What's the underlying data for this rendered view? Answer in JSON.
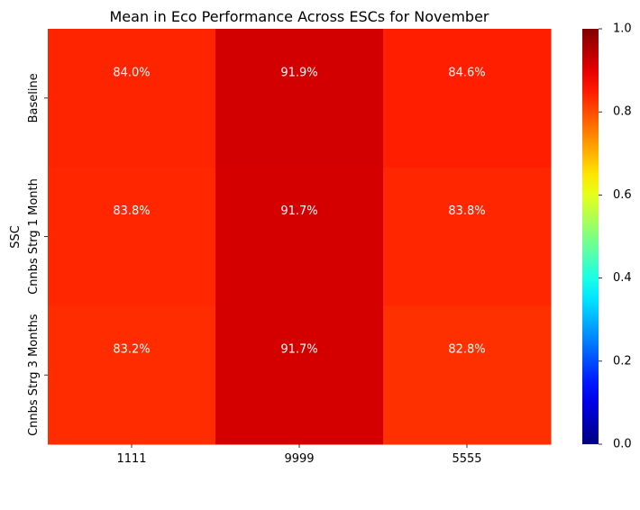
{
  "chart_data": {
    "type": "heatmap",
    "title": "Mean in Eco Performance Across ESCs for November",
    "xlabel": "",
    "ylabel": "SSC",
    "x_categories": [
      "1111",
      "9999",
      "5555"
    ],
    "y_categories": [
      "Baseline",
      "Cnnbs Strg 1 Month",
      "Cnnbs Strg 3 Months"
    ],
    "values": [
      [
        0.84,
        0.919,
        0.846
      ],
      [
        0.838,
        0.917,
        0.838
      ],
      [
        0.832,
        0.917,
        0.828
      ]
    ],
    "cell_labels": [
      [
        "84.0%",
        "91.9%",
        "84.6%"
      ],
      [
        "83.8%",
        "91.7%",
        "83.8%"
      ],
      [
        "83.2%",
        "91.7%",
        "82.8%"
      ]
    ],
    "colormap": "jet",
    "vmin": 0.0,
    "vmax": 1.0,
    "colorbar_ticks": [
      "0.0",
      "0.2",
      "0.4",
      "0.6",
      "0.8",
      "1.0"
    ],
    "colorbar_tick_values": [
      0.0,
      0.2,
      0.4,
      0.6,
      0.8,
      1.0
    ]
  }
}
